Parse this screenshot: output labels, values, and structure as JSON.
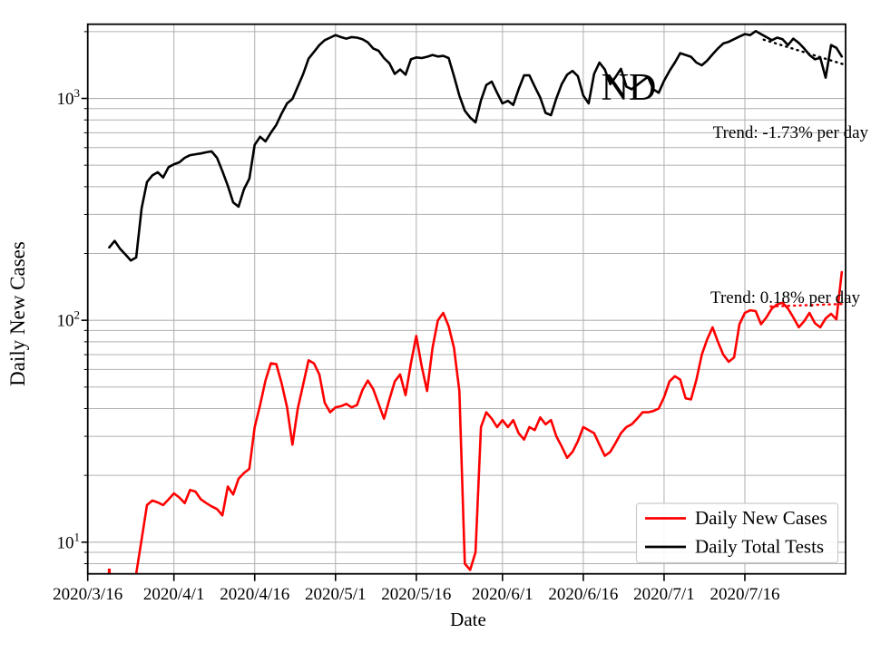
{
  "figure": {
    "state_label": "ND",
    "xlabel": "Date",
    "ylabel": "Daily New Cases"
  },
  "chart_data": {
    "type": "line",
    "title": "ND",
    "xlabel": "Date",
    "ylabel": "Daily New Cases",
    "x_unit": "days since 2020/3/16",
    "xlim": [
      0,
      140.7
    ],
    "ylim": [
      7.2,
      2160
    ],
    "log_y": true,
    "grid": {
      "show": true,
      "color": "#b0b0b0",
      "minor": true
    },
    "xticks": {
      "days": [
        0,
        16,
        31,
        46,
        61,
        77,
        92,
        107,
        122
      ],
      "labels": [
        "2020/3/16",
        "2020/4/1",
        "2020/4/16",
        "2020/5/1",
        "2020/5/16",
        "2020/6/1",
        "2020/6/16",
        "2020/7/1",
        "2020/7/16"
      ]
    },
    "yticks": {
      "values": [
        10,
        100,
        1000
      ],
      "labels": [
        "10^1",
        "10^2",
        "10^3"
      ],
      "base": "10",
      "exponents": [
        "1",
        "2",
        "3"
      ]
    },
    "series": [
      {
        "name": "Daily New Cases",
        "color": "#ff0000",
        "start_day": 8,
        "isolated_point": {
          "day": 4,
          "value": 7.5
        },
        "values": [
          6,
          7.2,
          10.3,
          14.7,
          15.4,
          15.1,
          14.7,
          15.6,
          16.6,
          15.9,
          15,
          17.2,
          16.9,
          15.6,
          15,
          14.5,
          14.1,
          13.2,
          17.8,
          16.4,
          19.3,
          20.5,
          21.4,
          33,
          41.5,
          53.5,
          64,
          63.5,
          52,
          40.5,
          27.5,
          40,
          51.5,
          66,
          64,
          57,
          42.5,
          38.5,
          40.5,
          41,
          42,
          40.5,
          41.5,
          48.5,
          53.5,
          49,
          42,
          36,
          44,
          53,
          57,
          46,
          64,
          85,
          62,
          48,
          75,
          100,
          108,
          94,
          75,
          48,
          8,
          7.5,
          9,
          33,
          38.5,
          36,
          33,
          35.5,
          33,
          35.5,
          31,
          29,
          33,
          32,
          36.5,
          34,
          35.5,
          30,
          27,
          24,
          25.5,
          28.5,
          33,
          32,
          31,
          27.5,
          24.5,
          25.5,
          28,
          31,
          33,
          34,
          36,
          38.5,
          38.5,
          39,
          40,
          45,
          53,
          56,
          54,
          44.5,
          44,
          54,
          70,
          82,
          93,
          80,
          70,
          65,
          68,
          96,
          108,
          111,
          110,
          96,
          103,
          113,
          118,
          120,
          113,
          103,
          93,
          99,
          108,
          97,
          93,
          102,
          107,
          101,
          165
        ]
      },
      {
        "name": "Daily Total Tests",
        "color": "#000000",
        "start_day": 4,
        "values": [
          213,
          228,
          210,
          198,
          186,
          192,
          320,
          420,
          450,
          465,
          440,
          490,
          505,
          515,
          540,
          555,
          560,
          565,
          572,
          577,
          540,
          470,
          404,
          340,
          325,
          390,
          435,
          618,
          672,
          640,
          700,
          760,
          855,
          950,
          995,
          1130,
          1290,
          1510,
          1620,
          1740,
          1830,
          1880,
          1930,
          1890,
          1860,
          1890,
          1880,
          1850,
          1790,
          1680,
          1640,
          1520,
          1440,
          1290,
          1350,
          1280,
          1500,
          1530,
          1520,
          1540,
          1570,
          1545,
          1555,
          1520,
          1260,
          1030,
          880,
          820,
          780,
          980,
          1150,
          1190,
          1060,
          950,
          975,
          935,
          1100,
          1270,
          1270,
          1130,
          1010,
          860,
          840,
          1000,
          1160,
          1280,
          1330,
          1260,
          1030,
          950,
          1290,
          1450,
          1350,
          1160,
          1250,
          1360,
          1130,
          1100,
          1150,
          1200,
          1250,
          1100,
          1060,
          1200,
          1330,
          1450,
          1600,
          1570,
          1540,
          1450,
          1410,
          1480,
          1580,
          1680,
          1770,
          1800,
          1850,
          1900,
          1950,
          1930,
          2010,
          1950,
          1890,
          1830,
          1880,
          1850,
          1740,
          1860,
          1780,
          1680,
          1570,
          1500,
          1525,
          1240,
          1740,
          1690,
          1545
        ]
      }
    ],
    "trend_lines": [
      {
        "name": "tests-trend",
        "label": "Trend: -1.73% per day",
        "color": "#000000",
        "style": "dotted",
        "x": [
          125.5,
          140.5
        ],
        "y": [
          1840,
          1420
        ]
      },
      {
        "name": "cases-trend",
        "label": "Trend: 0.18% per day",
        "color": "#ff0000",
        "style": "dotted",
        "x": [
          126.8,
          140.3
        ],
        "y": [
          115.5,
          118.5
        ]
      }
    ],
    "annotations": [
      {
        "name": "state-label",
        "text": "ND"
      },
      {
        "name": "tests-trend-label",
        "text": "Trend: -1.73% per day"
      },
      {
        "name": "cases-trend-label",
        "text": "Trend: 0.18% per day"
      }
    ],
    "legend": {
      "position": "lower right",
      "entries": [
        {
          "label": "Daily New Cases",
          "color": "#ff0000"
        },
        {
          "label": "Daily Total Tests",
          "color": "#000000"
        }
      ]
    }
  }
}
